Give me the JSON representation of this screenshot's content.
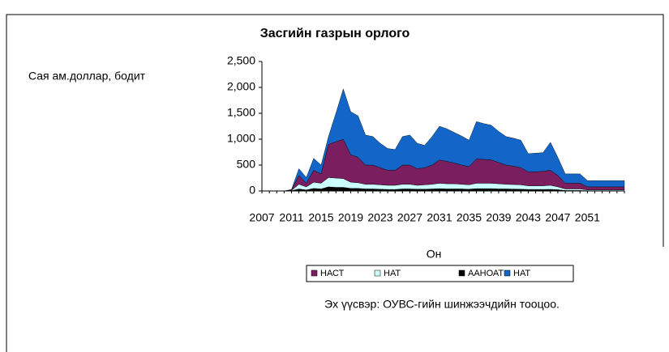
{
  "chart_data": {
    "type": "stacked_area",
    "title": "Засгийн газрын орлого",
    "ylabel": "Сая  ам.доллар, бодит",
    "xlabel": "Он",
    "note": "Эх үүсвэр: ОУВС-гийн шинжээчдийн тооцоо.",
    "categories": [
      "2007",
      null,
      null,
      null,
      "2011",
      null,
      null,
      null,
      "2015",
      null,
      null,
      null,
      "2019",
      null,
      null,
      null,
      "2023",
      null,
      null,
      null,
      "2027",
      null,
      null,
      null,
      "2031",
      null,
      null,
      null,
      "2035",
      null,
      null,
      null,
      "2039",
      null,
      null,
      null,
      "2043",
      null,
      null,
      null,
      "2047",
      null,
      null,
      null,
      "2051",
      null,
      null,
      null,
      null,
      null
    ],
    "ylim": [
      0,
      2500
    ],
    "yticks": [
      0,
      500,
      {
        "value": 1000,
        "label": "1,000"
      },
      {
        "value": 1500,
        "label": "1,500"
      },
      {
        "value": 2000,
        "label": "2,000"
      },
      {
        "value": 2500,
        "label": "2,500"
      }
    ],
    "series": [
      {
        "name": "НАСТ",
        "color": "#7b1e5f",
        "values": [
          0,
          0,
          0,
          0,
          10,
          170,
          70,
          230,
          180,
          640,
          700,
          760,
          530,
          490,
          370,
          370,
          330,
          290,
          290,
          370,
          370,
          320,
          330,
          370,
          450,
          430,
          400,
          370,
          350,
          470,
          460,
          450,
          410,
          370,
          355,
          330,
          270,
          270,
          280,
          290,
          220,
          110,
          110,
          110,
          60,
          60,
          60,
          60,
          60,
          60
        ]
      },
      {
        "name": "НАТ",
        "color": "#ccffff",
        "values": [
          0,
          0,
          0,
          0,
          5,
          90,
          60,
          120,
          110,
          180,
          180,
          170,
          120,
          110,
          90,
          90,
          85,
          80,
          80,
          90,
          90,
          75,
          85,
          90,
          105,
          100,
          100,
          90,
          85,
          105,
          105,
          105,
          100,
          90,
          87,
          85,
          70,
          70,
          70,
          78,
          55,
          30,
          30,
          30,
          15,
          15,
          15,
          15,
          15,
          15
        ]
      },
      {
        "name": "ААНОАТ",
        "color": "#000000",
        "values": [
          0,
          0,
          0,
          0,
          5,
          40,
          20,
          50,
          40,
          80,
          70,
          70,
          50,
          50,
          40,
          40,
          35,
          30,
          30,
          40,
          40,
          35,
          35,
          40,
          45,
          40,
          40,
          40,
          35,
          45,
          45,
          45,
          40,
          40,
          38,
          35,
          30,
          30,
          30,
          32,
          25,
          10,
          10,
          10,
          5,
          5,
          5,
          5,
          5,
          5
        ]
      },
      {
        "name": "НАТ",
        "color": "#1366c7",
        "values": [
          0,
          0,
          0,
          0,
          10,
          130,
          110,
          230,
          170,
          150,
          550,
          970,
          830,
          800,
          580,
          550,
          470,
          420,
          400,
          550,
          580,
          490,
          430,
          550,
          650,
          630,
          590,
          560,
          510,
          720,
          690,
          670,
          600,
          550,
          540,
          530,
          350,
          360,
          360,
          540,
          350,
          180,
          180,
          180,
          120,
          120,
          120,
          120,
          120,
          120
        ]
      }
    ],
    "stack_order": [
      2,
      1,
      0,
      3
    ]
  }
}
